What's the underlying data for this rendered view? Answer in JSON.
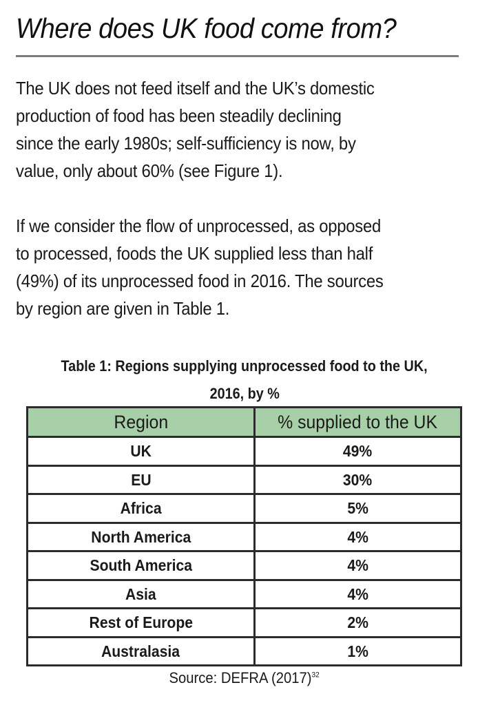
{
  "header": {
    "title": "Where does UK food come from?"
  },
  "body": {
    "paragraph_1": {
      "lines": [
        "The UK does not feed itself and the UK’s domestic",
        "production of food has been steadily declining",
        "since the early 1980s; self-sufficiency is now, by",
        "value, only about 60% (see Figure 1)."
      ]
    },
    "paragraph_2": {
      "lines": [
        "If we consider the flow of unprocessed, as opposed",
        "to processed, foods the UK supplied less than half",
        "(49%) of its unprocessed food in 2016. The sources",
        "by region are given in Table 1."
      ]
    }
  },
  "table": {
    "caption_lines": [
      "Table 1:  Regions supplying unprocessed food to the UK,",
      "2016, by %"
    ],
    "header_bg": "#a8d0a8",
    "columns": [
      "Region",
      "% supplied to the UK"
    ],
    "rows": [
      {
        "region": "UK",
        "percent": "49%"
      },
      {
        "region": "EU",
        "percent": "30%"
      },
      {
        "region": "Africa",
        "percent": "5%"
      },
      {
        "region": "North America",
        "percent": "4%"
      },
      {
        "region": "South America",
        "percent": "4%"
      },
      {
        "region": "Asia",
        "percent": "4%"
      },
      {
        "region": "Rest of Europe",
        "percent": "2%"
      },
      {
        "region": "Australasia",
        "percent": "1%"
      }
    ],
    "source": {
      "text": "Source: DEFRA (2017)",
      "footnote": "32"
    }
  },
  "chart_data": {
    "type": "table",
    "title": "Table 1: Regions supplying unprocessed food to the UK, 2016, by %",
    "columns": [
      "Region",
      "% supplied to the UK"
    ],
    "categories": [
      "UK",
      "EU",
      "Africa",
      "North America",
      "South America",
      "Asia",
      "Rest of Europe",
      "Australasia"
    ],
    "values": [
      49,
      30,
      5,
      4,
      4,
      4,
      2,
      1
    ],
    "unit": "%",
    "source": "DEFRA (2017)"
  }
}
